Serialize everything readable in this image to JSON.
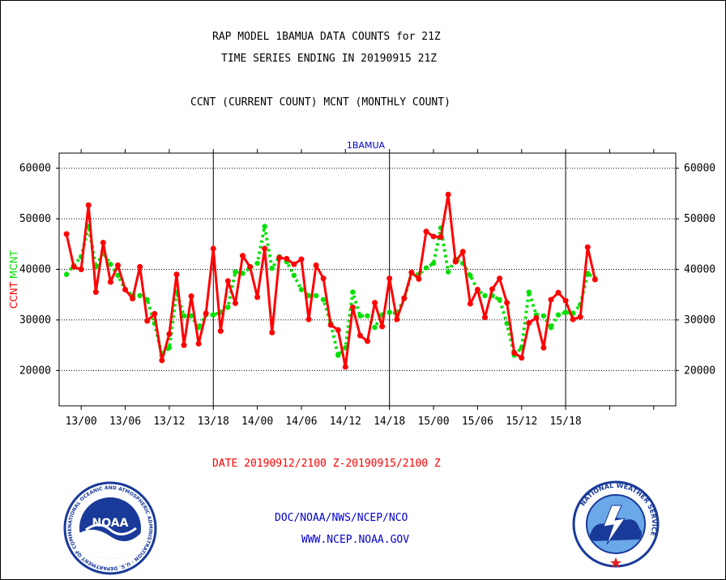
{
  "header": {
    "title_line1": "RAP MODEL 1BAMUA DATA COUNTS for 21Z",
    "title_line2": "TIME SERIES ENDING IN 20190915 21Z",
    "title_line3": "CCNT (CURRENT COUNT) MCNT (MONTHLY COUNT)"
  },
  "footer": {
    "date_range": "DATE 20190912/2100 Z-20190915/2100 Z",
    "org": "DOC/NOAA/NWS/NCEP/NCO",
    "url": "WWW.NCEP.NOAA.GOV"
  },
  "logos": {
    "left_text": "NOAA",
    "left_ring_text": "NATIONAL OCEANIC AND ATMOSPHERIC ADMINISTRATION · U.S. DEPARTMENT OF COMMERCE",
    "right_ring_text": "NATIONAL WEATHER SERVICE"
  },
  "colors": {
    "ccnt": "#ff0000",
    "mcnt": "#00e000",
    "station_label": "#0000cc",
    "footer_links": "#0000cc",
    "date_text": "#ff0000"
  },
  "chart_data": {
    "type": "line",
    "title": "1BAMUA",
    "ylabel_left": [
      "CCNT",
      "MCNT"
    ],
    "ylim": [
      13000,
      63000
    ],
    "yticks": [
      20000,
      30000,
      40000,
      50000,
      60000
    ],
    "ytick_labels": [
      "20000",
      "30000",
      "40000",
      "50000",
      "60000"
    ],
    "xlim": [
      -1,
      83
    ],
    "xticks": [
      2,
      8,
      14,
      20,
      26,
      32,
      38,
      44,
      50,
      56,
      62,
      68,
      74,
      80
    ],
    "xtick_labels": [
      "13/00",
      "13/06",
      "13/12",
      "13/18",
      "14/00",
      "14/06",
      "14/12",
      "14/18",
      "15/00",
      "15/06",
      "15/12",
      "15/18"
    ],
    "xtick_label_positions": [
      2,
      8,
      14,
      20,
      26,
      32,
      38,
      44,
      50,
      56,
      62,
      68
    ],
    "day_boundaries": [
      20,
      44,
      68
    ],
    "grid": true,
    "series": [
      {
        "name": "CCNT",
        "values": [
          47000,
          40500,
          40000,
          52700,
          35500,
          45300,
          37500,
          40800,
          36000,
          34200,
          40500,
          29800,
          31200,
          22000,
          27200,
          39000,
          25000,
          34700,
          25300,
          31300,
          44100,
          27800,
          37700,
          33300,
          42700,
          40500,
          34500,
          44100,
          27500,
          42300,
          42100,
          41000,
          42000,
          30100,
          40800,
          38200,
          29000,
          28000,
          20700,
          32500,
          26900,
          25800,
          33400,
          28700,
          38200,
          30100,
          34300,
          39400,
          38100,
          47500,
          46500,
          46400,
          54800,
          41500,
          43500,
          33200,
          36000,
          30500,
          36100,
          38200,
          33400,
          23500,
          22500,
          29400,
          30400,
          24500,
          34000,
          35400,
          33800,
          30100,
          30600,
          44400,
          38000
        ]
      },
      {
        "name": "MCNT",
        "values": [
          39000,
          40800,
          42500,
          48500,
          40500,
          43300,
          41000,
          38800,
          36000,
          34800,
          34800,
          34000,
          29300,
          23000,
          24500,
          35500,
          30800,
          30800,
          28500,
          31000,
          31000,
          31500,
          32500,
          39500,
          39200,
          40300,
          41200,
          48500,
          40200,
          42500,
          41500,
          38800,
          36000,
          34800,
          34800,
          34000,
          29300,
          23000,
          24500,
          35500,
          30800,
          30800,
          28500,
          31000,
          31500,
          31300,
          34200,
          39200,
          39000,
          40300,
          41200,
          48200,
          39500,
          42000,
          41200,
          38800,
          36000,
          34800,
          34800,
          34000,
          29300,
          23000,
          24500,
          35500,
          31000,
          30800,
          28500,
          31000,
          31500,
          31300,
          33000,
          39200,
          38200
        ]
      }
    ]
  }
}
